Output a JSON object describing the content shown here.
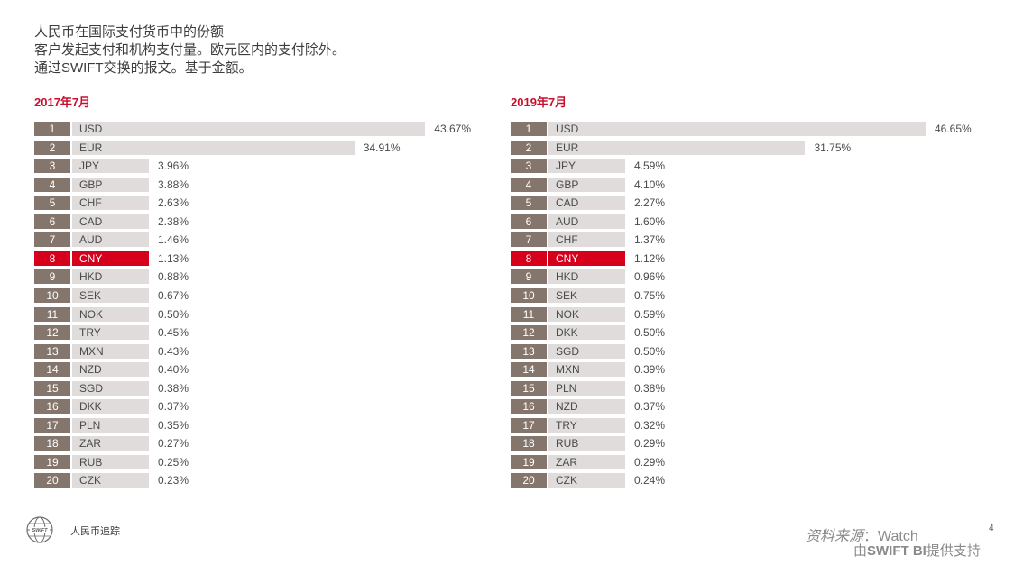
{
  "title": {
    "line1": "人民币在国际支付货币中的份额",
    "line2": "客户发起支付和机构支付量。欧元区内的支付除外。",
    "line3": "通过SWIFT交换的报文。基于金额。"
  },
  "chart_data": [
    {
      "type": "bar",
      "orientation": "horizontal",
      "title": "2017年7月",
      "highlight": "CNY",
      "colors": {
        "rank": "#85766d",
        "bar": "#dfdcdb",
        "highlight": "#d6001c"
      },
      "ranks": [
        "1",
        "2",
        "3",
        "4",
        "5",
        "6",
        "7",
        "8",
        "9",
        "10",
        "11",
        "12",
        "13",
        "14",
        "15",
        "16",
        "17",
        "18",
        "19",
        "20"
      ],
      "categories": [
        "USD",
        "EUR",
        "JPY",
        "GBP",
        "CHF",
        "CAD",
        "AUD",
        "CNY",
        "HKD",
        "SEK",
        "NOK",
        "TRY",
        "MXN",
        "NZD",
        "SGD",
        "DKK",
        "PLN",
        "ZAR",
        "RUB",
        "CZK"
      ],
      "values": [
        43.67,
        34.91,
        3.96,
        3.88,
        2.63,
        2.38,
        1.46,
        1.13,
        0.88,
        0.67,
        0.5,
        0.45,
        0.43,
        0.4,
        0.38,
        0.37,
        0.35,
        0.27,
        0.25,
        0.23
      ],
      "labels": [
        "43.67%",
        "34.91%",
        "3.96%",
        "3.88%",
        "2.63%",
        "2.38%",
        "1.46%",
        "1.13%",
        "0.88%",
        "0.67%",
        "0.50%",
        "0.45%",
        "0.43%",
        "0.40%",
        "0.38%",
        "0.37%",
        "0.35%",
        "0.27%",
        "0.25%",
        "0.23%"
      ]
    },
    {
      "type": "bar",
      "orientation": "horizontal",
      "title": "2019年7月",
      "highlight": "CNY",
      "colors": {
        "rank": "#85766d",
        "bar": "#dfdcdb",
        "highlight": "#d6001c"
      },
      "ranks": [
        "1",
        "2",
        "3",
        "4",
        "5",
        "6",
        "7",
        "8",
        "9",
        "10",
        "11",
        "12",
        "13",
        "14",
        "15",
        "16",
        "17",
        "18",
        "19",
        "20"
      ],
      "categories": [
        "USD",
        "EUR",
        "JPY",
        "GBP",
        "CAD",
        "AUD",
        "CHF",
        "CNY",
        "HKD",
        "SEK",
        "NOK",
        "DKK",
        "SGD",
        "MXN",
        "PLN",
        "NZD",
        "TRY",
        "RUB",
        "ZAR",
        "CZK"
      ],
      "values": [
        46.65,
        31.75,
        4.59,
        4.1,
        2.27,
        1.6,
        1.37,
        1.12,
        0.96,
        0.75,
        0.59,
        0.5,
        0.5,
        0.39,
        0.38,
        0.37,
        0.32,
        0.29,
        0.29,
        0.24
      ],
      "labels": [
        "46.65%",
        "31.75%",
        "4.59%",
        "4.10%",
        "2.27%",
        "1.60%",
        "1.37%",
        "1.12%",
        "0.96%",
        "0.75%",
        "0.59%",
        "0.50%",
        "0.50%",
        "0.39%",
        "0.38%",
        "0.37%",
        "0.32%",
        "0.29%",
        "0.29%",
        "0.24%"
      ]
    }
  ],
  "footer": {
    "logo_text": "SWIFT",
    "tracker": "人民币追踪",
    "source_label": "资料来源",
    "source_value": "：Watch",
    "provided_prefix": "由",
    "provided_brand": "SWIFT BI",
    "provided_suffix": "提供支持",
    "page_number": "4"
  }
}
